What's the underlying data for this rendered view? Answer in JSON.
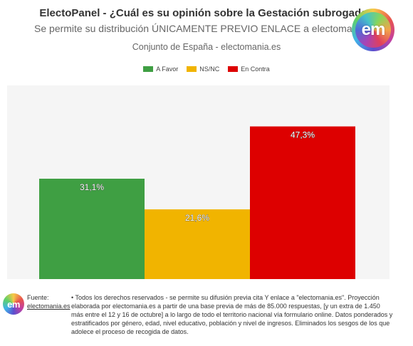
{
  "header": {
    "title": "ElectoPanel - ¿Cuál es su opinión sobre la Gestación subrogada?",
    "subtitle": "Se permite su distribución ÚNICAMENTE PREVIO ENLACE a electomania.es",
    "scope": "Conjunto de España - electomania.es",
    "logo_text": "em"
  },
  "colors": {
    "favor": "#3f9f43",
    "nsnc": "#f1b400",
    "contra": "#dd0000",
    "plot_bg": "#f5f5f5"
  },
  "chart_data": {
    "type": "bar",
    "categories": [
      "A Favor",
      "NS/NC",
      "En Contra"
    ],
    "values": [
      31.1,
      21.6,
      47.3
    ],
    "data_labels": [
      "31,1%",
      "21,6%",
      "47,3%"
    ],
    "colors": [
      "#3f9f43",
      "#f1b400",
      "#dd0000"
    ],
    "legend": [
      "A Favor",
      "NS/NC",
      "En Contra"
    ],
    "legend_position": "top-center",
    "ylim": [
      0,
      60
    ],
    "grid": false
  },
  "footer": {
    "logo_text": "em",
    "source_label": "Fuente:",
    "source_link": "electomania.es",
    "note": "• Todos los derechos reservados - se permite su difusión previa cita Y enlace a \"electomania.es\". Proyección elaborada por electomania.es a partir de una base previa de más de 85.000 respuestas, [y un extra de 1.450 más entre el 12 y 16 de octubre] a lo largo de todo el territorio nacional vía formulario online. Datos ponderados y estratificados por género, edad, nivel educativo, población y nivel de ingresos. Eliminados los sesgos de los que adolece el proceso de recogida de datos."
  }
}
